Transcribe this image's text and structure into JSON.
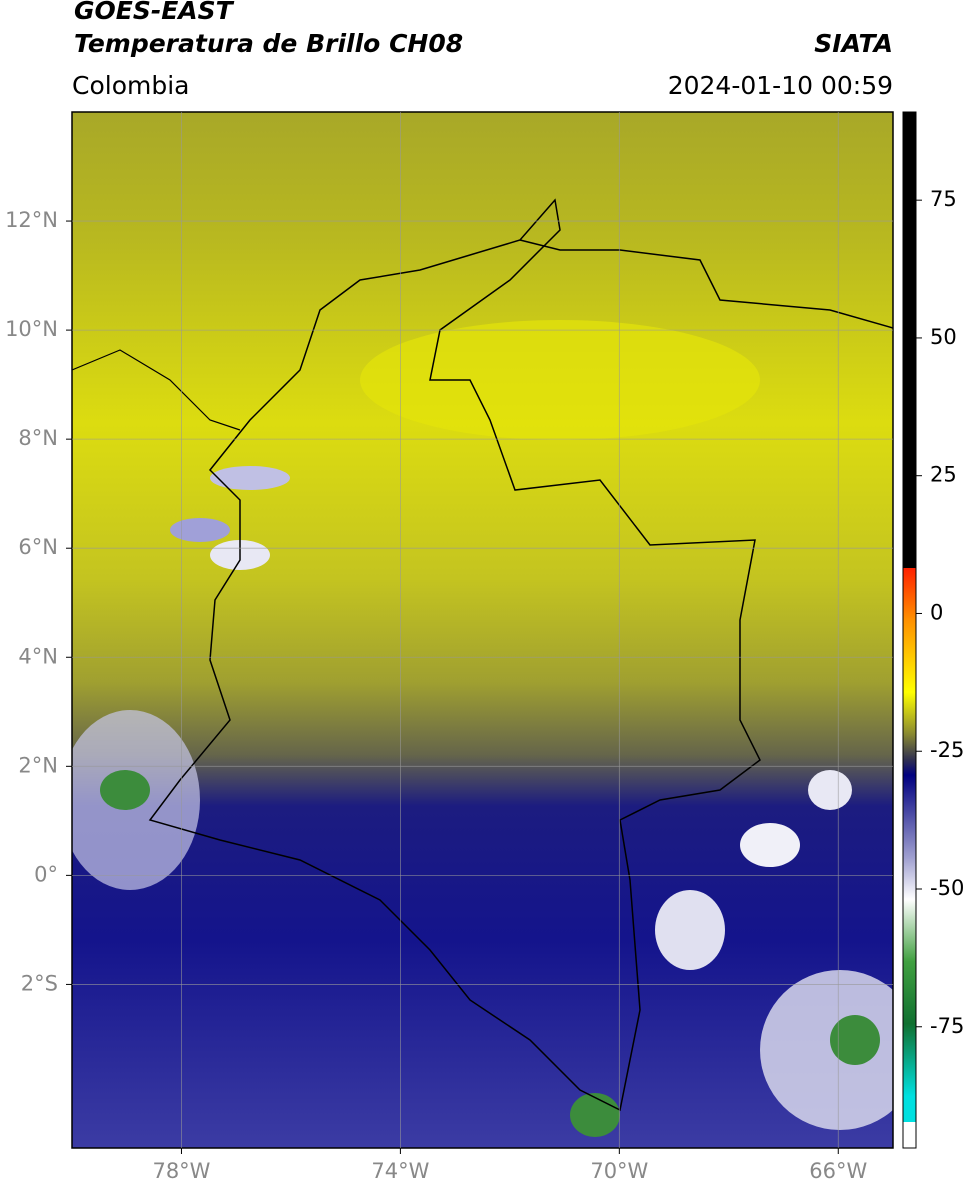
{
  "header": {
    "title": "GOES-EAST",
    "subtitle": "Temperatura de Brillo CH08",
    "source": "SIATA",
    "region": "Colombia",
    "timestamp": "2024-01-10 00:59"
  },
  "map": {
    "xlim": [
      -80,
      -65
    ],
    "ylim": [
      -5,
      14
    ],
    "grid": true,
    "xticks": [
      {
        "value": -78,
        "label": "78°W"
      },
      {
        "value": -74,
        "label": "74°W"
      },
      {
        "value": -70,
        "label": "70°W"
      },
      {
        "value": -66,
        "label": "66°W"
      }
    ],
    "yticks": [
      {
        "value": 12,
        "label": "12°N"
      },
      {
        "value": 10,
        "label": "10°N"
      },
      {
        "value": 8,
        "label": "8°N"
      },
      {
        "value": 6,
        "label": "6°N"
      },
      {
        "value": 4,
        "label": "4°N"
      },
      {
        "value": 2,
        "label": "2°N"
      },
      {
        "value": 0,
        "label": "0°"
      },
      {
        "value": -2,
        "label": "2°S"
      }
    ]
  },
  "colorbar": {
    "lim": [
      -97,
      91
    ],
    "ticks": [
      75,
      50,
      25,
      0,
      -25,
      -50,
      -75
    ]
  }
}
